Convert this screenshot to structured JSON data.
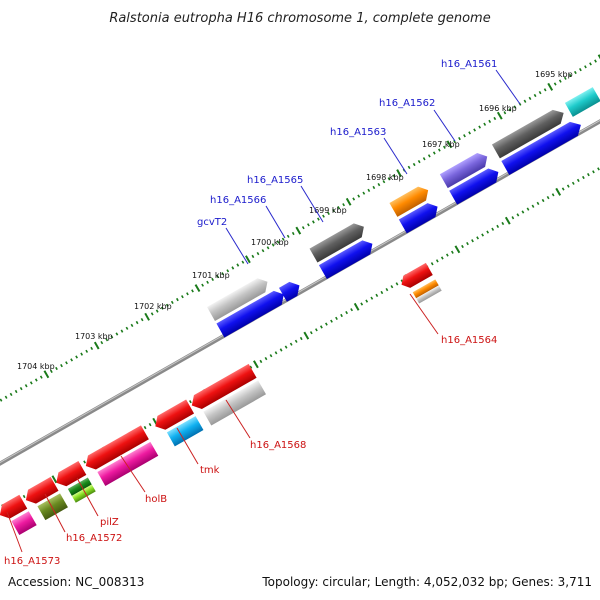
{
  "title": "Ralstonia eutropha H16 chromosome 1, complete genome",
  "footer": {
    "accession": "Accession: NC_008313",
    "summary": "Topology: circular; Length: 4,052,032 bp; Genes: 3,711"
  },
  "ticks": [
    "1695 kbp",
    "1696 kbp",
    "1697 kbp",
    "1698 kbp",
    "1699 kbp",
    "1700 kbp",
    "1701 kbp",
    "1702 kbp",
    "1703 kbp",
    "1704 kbp"
  ],
  "genes_forward_labels": [
    "h16_A1561",
    "h16_A1562",
    "h16_A1563",
    "h16_A1565",
    "h16_A1566",
    "gcvT2"
  ],
  "genes_reverse_labels": [
    "h16_A1564",
    "h16_A1568",
    "tmk",
    "holB",
    "pilZ",
    "h16_A1572",
    "h16_A1573"
  ],
  "colors": {
    "forward_label": "#1a1acc",
    "reverse_label": "#cc1111",
    "backbone": "#8a8a8a",
    "tick_marks": "#1a7a1a"
  }
}
